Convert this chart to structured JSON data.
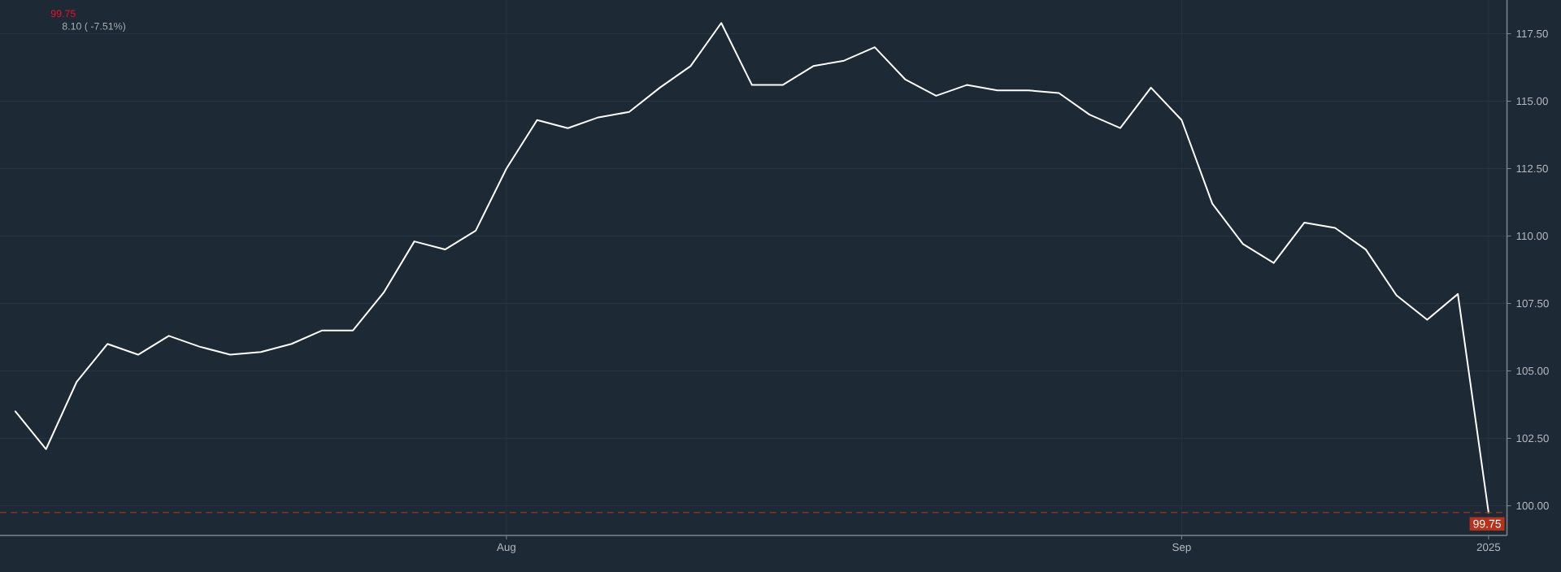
{
  "chart_data": {
    "type": "line",
    "categories": [
      null,
      null,
      null,
      null,
      null,
      null,
      null,
      null,
      null,
      null,
      null,
      null,
      null,
      null,
      null,
      null,
      "Aug",
      null,
      null,
      null,
      null,
      null,
      null,
      null,
      null,
      null,
      null,
      null,
      null,
      null,
      null,
      null,
      null,
      null,
      null,
      null,
      null,
      null,
      "Sep",
      null,
      null,
      null,
      null,
      null,
      null,
      null,
      null,
      null,
      "2025"
    ],
    "values": [
      103.5,
      102.1,
      104.6,
      106.0,
      105.6,
      106.3,
      105.9,
      105.6,
      105.7,
      106.0,
      106.5,
      106.5,
      107.9,
      109.8,
      109.5,
      110.2,
      112.5,
      114.3,
      114.0,
      114.4,
      114.6,
      115.5,
      116.3,
      117.9,
      115.6,
      115.6,
      116.3,
      116.5,
      117.0,
      115.8,
      115.2,
      115.6,
      115.4,
      115.4,
      115.3,
      114.5,
      114.0,
      115.5,
      114.3,
      111.2,
      109.7,
      109.0,
      110.5,
      110.3,
      109.5,
      107.8,
      106.9,
      107.85,
      99.75
    ],
    "color": "#ffffff",
    "ylim": [
      98.9,
      118.75
    ],
    "yticks": [
      {
        "value": 100,
        "label": "100.00"
      },
      {
        "value": 102.5,
        "label": "102.50"
      },
      {
        "value": 105,
        "label": "105.00"
      },
      {
        "value": 107.5,
        "label": "107.50"
      },
      {
        "value": 110,
        "label": "110.00"
      },
      {
        "value": 112.5,
        "label": "112.50"
      },
      {
        "value": 115,
        "label": "115.00"
      },
      {
        "value": 117.5,
        "label": "117.50"
      }
    ],
    "grid": true,
    "ref_lines": [
      {
        "axis": "y",
        "value": 99.75,
        "label": "99.75",
        "color": "#b5321c",
        "line_style": "dashed"
      }
    ],
    "annotations": [
      "99.75",
      "8.10 ( -7.51%)"
    ]
  }
}
